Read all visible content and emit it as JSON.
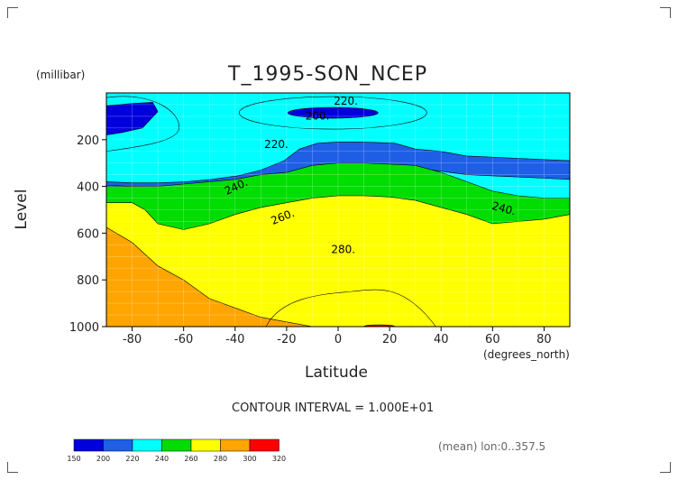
{
  "chart_data": {
    "type": "contour",
    "title": "T_1995-SON_NCEP",
    "xlabel": "Latitude",
    "x_units": "(degrees_north)",
    "ylabel": "Level",
    "y_units": "(millibar)",
    "xlim": [
      -90,
      90
    ],
    "ylim": [
      1000,
      0
    ],
    "x_ticks": [
      -80,
      -60,
      -40,
      -20,
      0,
      20,
      40,
      60,
      80
    ],
    "y_ticks": [
      200,
      400,
      600,
      800,
      1000
    ],
    "contour_interval_text": "CONTOUR INTERVAL = 1.000E+01",
    "footer_text": "(mean) lon:0..357.5",
    "contour_labels": [
      {
        "text": "200.",
        "lat": -8,
        "level": 113
      },
      {
        "text": "220.",
        "lat": 3,
        "level": 50
      },
      {
        "text": "220.",
        "lat": -24,
        "level": 235
      },
      {
        "text": "240.",
        "lat": -39,
        "level": 415
      },
      {
        "text": "260.",
        "lat": -21,
        "level": 545
      },
      {
        "text": "280.",
        "lat": 2,
        "level": 685
      },
      {
        "text": "240.",
        "lat": 64,
        "level": 510
      }
    ],
    "color_levels": [
      150,
      200,
      220,
      240,
      260,
      280,
      300,
      320
    ],
    "colors": [
      "#0000dd",
      "#1e5fe6",
      "#00ffff",
      "#00dd00",
      "#ffff00",
      "#ffa500",
      "#ff0000"
    ],
    "colorbar_labels": [
      "150",
      "200",
      "220",
      "240",
      "260",
      "280",
      "300",
      "320"
    ],
    "bands": [
      {
        "level": 200,
        "color": "#1e5fe6",
        "upper": [
          [
            -90,
            380
          ],
          [
            -79,
            385
          ],
          [
            -70,
            385
          ],
          [
            -59,
            380
          ],
          [
            -49,
            370
          ],
          [
            -39,
            355
          ],
          [
            -30,
            330
          ],
          [
            -21,
            290
          ],
          [
            -15,
            240
          ],
          [
            -8,
            215
          ],
          [
            0,
            210
          ],
          [
            8,
            210
          ],
          [
            15,
            212
          ],
          [
            22,
            215
          ],
          [
            30,
            240
          ],
          [
            40,
            250
          ],
          [
            50,
            270
          ],
          [
            60,
            275
          ],
          [
            70,
            280
          ],
          [
            80,
            285
          ],
          [
            90,
            290
          ]
        ],
        "holes": [
          [
            [
              -90,
              55
            ],
            [
              -80,
              45
            ],
            [
              -72,
              40
            ],
            [
              -70,
              80
            ],
            [
              -76,
              150
            ],
            [
              -84,
              170
            ],
            [
              -90,
              180
            ]
          ]
        ]
      },
      {
        "level": 220,
        "color": "#00ffff",
        "upper": [
          [
            -90,
            395
          ],
          [
            -80,
            400
          ],
          [
            -70,
            405
          ],
          [
            -60,
            405
          ],
          [
            -50,
            390
          ],
          [
            -40,
            380
          ],
          [
            -30,
            370
          ],
          [
            -20,
            350
          ],
          [
            -10,
            325
          ],
          [
            0,
            310
          ],
          [
            10,
            310
          ],
          [
            20,
            315
          ],
          [
            30,
            320
          ],
          [
            40,
            335
          ],
          [
            50,
            350
          ],
          [
            60,
            355
          ],
          [
            70,
            360
          ],
          [
            80,
            365
          ],
          [
            90,
            370
          ]
        ]
      },
      {
        "level": 240,
        "color": "#00dd00",
        "upper": [
          [
            -90,
            400
          ],
          [
            -80,
            400
          ],
          [
            -70,
            400
          ],
          [
            -60,
            390
          ],
          [
            -50,
            380
          ],
          [
            -40,
            370
          ],
          [
            -30,
            350
          ],
          [
            -20,
            340
          ],
          [
            -10,
            310
          ],
          [
            0,
            300
          ],
          [
            10,
            300
          ],
          [
            20,
            305
          ],
          [
            30,
            310
          ],
          [
            40,
            340
          ],
          [
            50,
            380
          ],
          [
            60,
            420
          ],
          [
            70,
            440
          ],
          [
            80,
            450
          ],
          [
            90,
            450
          ]
        ]
      },
      {
        "level": 260,
        "color": "#ffff00",
        "upper": [
          [
            -90,
            470
          ],
          [
            -80,
            470
          ],
          [
            -75,
            500
          ],
          [
            -70,
            560
          ],
          [
            -60,
            585
          ],
          [
            -50,
            560
          ],
          [
            -40,
            520
          ],
          [
            -30,
            490
          ],
          [
            -20,
            470
          ],
          [
            -10,
            450
          ],
          [
            0,
            440
          ],
          [
            10,
            440
          ],
          [
            20,
            445
          ],
          [
            30,
            460
          ],
          [
            40,
            490
          ],
          [
            50,
            520
          ],
          [
            60,
            560
          ],
          [
            70,
            550
          ],
          [
            80,
            540
          ],
          [
            90,
            520
          ]
        ]
      },
      {
        "level": 280,
        "color": "#ffa500",
        "upper": [
          [
            -90,
            575
          ],
          [
            -80,
            640
          ],
          [
            -70,
            740
          ],
          [
            -60,
            800
          ],
          [
            -50,
            880
          ],
          [
            -40,
            920
          ],
          [
            -30,
            960
          ],
          [
            -20,
            980
          ],
          [
            -10,
            1000
          ],
          [
            0,
            1000
          ],
          [
            10,
            1000
          ],
          [
            20,
            1000
          ],
          [
            30,
            1000
          ],
          [
            40,
            1000
          ],
          [
            50,
            1000
          ],
          [
            60,
            1000
          ],
          [
            70,
            1000
          ],
          [
            80,
            1000
          ],
          [
            90,
            1000
          ]
        ]
      },
      {
        "level": 300,
        "color": "#ff0000",
        "upper": [
          [
            -90,
            1000
          ],
          [
            90,
            1000
          ]
        ]
      }
    ]
  }
}
